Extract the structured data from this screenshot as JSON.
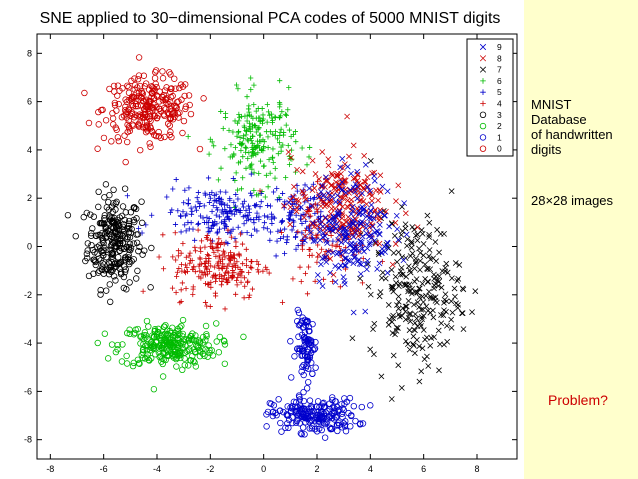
{
  "side_panel": {
    "lines": [
      "MNIST",
      "Database",
      "of handwritten",
      "digits"
    ],
    "image_size": "28×28 images",
    "question": "Problem?"
  },
  "chart_data": {
    "type": "scatter",
    "title": "SNE applied to 30−dimensional PCA codes of 5000 MNIST digits",
    "xlabel": "",
    "ylabel": "",
    "xlim": [
      -8.5,
      9.5
    ],
    "ylim": [
      -8.8,
      8.8
    ],
    "x_ticks": [
      -8,
      -6,
      -4,
      -2,
      0,
      2,
      4,
      6,
      8
    ],
    "y_ticks": [
      -8,
      -6,
      -4,
      -2,
      0,
      2,
      4,
      6,
      8
    ],
    "x_tick_labels": [
      "-8",
      "-6",
      "-4",
      "-2",
      "0",
      "2",
      "4",
      "6",
      "8"
    ],
    "y_tick_labels": [
      "-8",
      "-6",
      "-4",
      "-2",
      "0",
      "2",
      "4",
      "6",
      "8"
    ],
    "grid": false,
    "legend_position": "top-right",
    "series": [
      {
        "name": "9",
        "marker": "x",
        "color": "#0000cc",
        "clusters": [
          {
            "center": [
              3.3,
              0.8
            ],
            "spread": [
              1.6,
              2.3
            ],
            "points": 220
          }
        ]
      },
      {
        "name": "8",
        "marker": "x",
        "color": "#cc0000",
        "clusters": [
          {
            "center": [
              2.8,
              1.8
            ],
            "spread": [
              1.8,
              2.0
            ],
            "points": 220
          }
        ]
      },
      {
        "name": "7",
        "marker": "x",
        "color": "#000000",
        "clusters": [
          {
            "center": [
              5.7,
              -1.8
            ],
            "spread": [
              1.7,
              3.0
            ],
            "points": 260
          }
        ]
      },
      {
        "name": "6",
        "marker": "+",
        "color": "#00bb00",
        "clusters": [
          {
            "center": [
              -0.2,
              4.4
            ],
            "spread": [
              1.4,
              1.9
            ],
            "points": 220
          }
        ]
      },
      {
        "name": "5",
        "marker": "+",
        "color": "#0000cc",
        "clusters": [
          {
            "center": [
              -1.5,
              1.4
            ],
            "spread": [
              2.4,
              1.1
            ],
            "points": 200
          },
          {
            "center": [
              1.2,
              1.0
            ],
            "spread": [
              1.0,
              1.5
            ],
            "points": 90
          }
        ]
      },
      {
        "name": "4",
        "marker": "+",
        "color": "#cc0000",
        "clusters": [
          {
            "center": [
              -1.7,
              -0.8
            ],
            "spread": [
              1.7,
              1.4
            ],
            "points": 220
          },
          {
            "center": [
              2.4,
              0.2
            ],
            "spread": [
              1.5,
              2.0
            ],
            "points": 80
          }
        ]
      },
      {
        "name": "3",
        "marker": "o",
        "color": "#000000",
        "clusters": [
          {
            "center": [
              -5.6,
              0.2
            ],
            "spread": [
              1.0,
              1.9
            ],
            "points": 260
          }
        ]
      },
      {
        "name": "2",
        "marker": "o",
        "color": "#00bb00",
        "clusters": [
          {
            "center": [
              -3.6,
              -4.1
            ],
            "spread": [
              1.8,
              0.9
            ],
            "points": 260
          }
        ]
      },
      {
        "name": "1",
        "marker": "o",
        "color": "#0000cc",
        "clusters": [
          {
            "center": [
              1.9,
              -7.0
            ],
            "spread": [
              1.6,
              0.7
            ],
            "points": 200
          },
          {
            "center": [
              1.6,
              -4.2
            ],
            "spread": [
              0.4,
              1.4
            ],
            "points": 90
          }
        ]
      },
      {
        "name": "0",
        "marker": "o",
        "color": "#cc0000",
        "clusters": [
          {
            "center": [
              -4.3,
              5.7
            ],
            "spread": [
              1.7,
              1.3
            ],
            "points": 260
          }
        ]
      }
    ]
  }
}
